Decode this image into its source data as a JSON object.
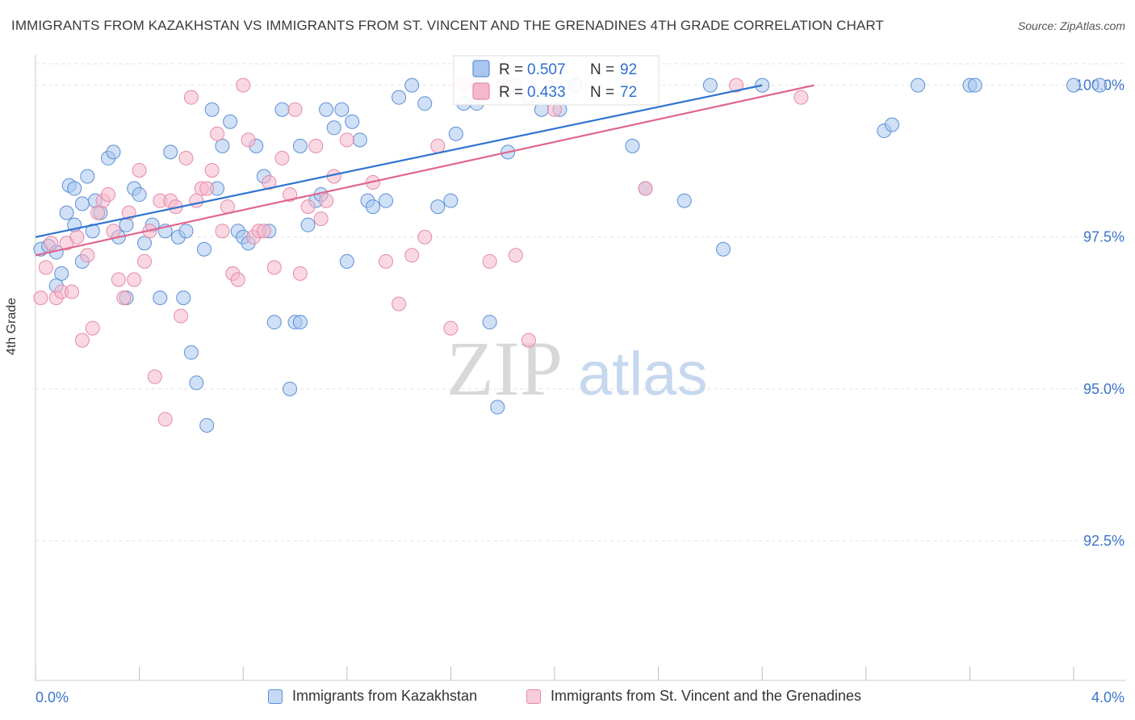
{
  "title": "IMMIGRANTS FROM KAZAKHSTAN VS IMMIGRANTS FROM ST. VINCENT AND THE GRENADINES 4TH GRADE CORRELATION CHART",
  "source": "Source: ZipAtlas.com",
  "watermark": {
    "zip": "ZIP",
    "atlas": "atlas"
  },
  "chart_data": {
    "type": "scatter",
    "ylabel": "4th Grade",
    "xlim": [
      0.0,
      4.0
    ],
    "ylim": [
      90.2,
      100.5
    ],
    "x_tick_labels": [
      "0.0%",
      "4.0%"
    ],
    "y_ticks": [
      100.0,
      97.5,
      95.0,
      92.5
    ],
    "y_tick_labels": [
      "100.0%",
      "97.5%",
      "95.0%",
      "92.5%"
    ],
    "grid": true,
    "legend_placement": "top-center",
    "colors": {
      "blue_fill": "#a9c6ee",
      "blue_stroke": "#5b8fd6",
      "blue_line": "#2f74d0",
      "pink_fill": "#f5b8cb",
      "pink_stroke": "#e48aa8",
      "pink_line": "#e0668f",
      "value_text": "#2f6fd0"
    },
    "legend_stats": [
      {
        "r_label": "R = ",
        "r_value": "0.507",
        "n_label": "N = ",
        "n_value": "92"
      },
      {
        "r_label": "R = ",
        "r_value": "0.433",
        "n_label": "N = ",
        "n_value": "72"
      }
    ],
    "series": [
      {
        "name": "Immigrants from Kazakhstan",
        "color": "#a9c6ee",
        "trend": {
          "x": [
            0.0,
            2.8
          ],
          "y": [
            97.5,
            100.0
          ]
        },
        "points": [
          [
            0.02,
            97.3
          ],
          [
            0.05,
            97.35
          ],
          [
            0.08,
            97.25
          ],
          [
            0.1,
            96.9
          ],
          [
            0.08,
            96.7
          ],
          [
            0.12,
            97.9
          ],
          [
            0.15,
            97.7
          ],
          [
            0.18,
            97.1
          ],
          [
            0.13,
            98.35
          ],
          [
            0.15,
            98.3
          ],
          [
            0.18,
            98.05
          ],
          [
            0.2,
            98.5
          ],
          [
            0.23,
            98.1
          ],
          [
            0.25,
            97.9
          ],
          [
            0.22,
            97.6
          ],
          [
            0.28,
            98.8
          ],
          [
            0.3,
            98.9
          ],
          [
            0.32,
            97.5
          ],
          [
            0.35,
            97.7
          ],
          [
            0.38,
            98.3
          ],
          [
            0.4,
            98.2
          ],
          [
            0.42,
            97.4
          ],
          [
            0.45,
            97.7
          ],
          [
            0.48,
            96.5
          ],
          [
            0.5,
            97.6
          ],
          [
            0.52,
            98.9
          ],
          [
            0.55,
            97.5
          ],
          [
            0.57,
            96.5
          ],
          [
            0.58,
            97.6
          ],
          [
            0.6,
            95.6
          ],
          [
            0.62,
            95.1
          ],
          [
            0.65,
            97.3
          ],
          [
            0.66,
            94.4
          ],
          [
            0.68,
            99.6
          ],
          [
            0.7,
            98.3
          ],
          [
            0.72,
            99.0
          ],
          [
            0.75,
            99.4
          ],
          [
            0.78,
            97.6
          ],
          [
            0.8,
            97.5
          ],
          [
            0.82,
            97.4
          ],
          [
            0.85,
            99.0
          ],
          [
            0.88,
            98.5
          ],
          [
            0.9,
            97.6
          ],
          [
            0.92,
            96.1
          ],
          [
            0.95,
            99.6
          ],
          [
            0.98,
            95.0
          ],
          [
            1.0,
            96.1
          ],
          [
            1.02,
            99.0
          ],
          [
            1.05,
            97.7
          ],
          [
            1.08,
            98.1
          ],
          [
            1.1,
            98.2
          ],
          [
            1.12,
            99.6
          ],
          [
            1.15,
            99.3
          ],
          [
            1.18,
            99.6
          ],
          [
            1.2,
            97.1
          ],
          [
            1.22,
            99.4
          ],
          [
            1.25,
            99.1
          ],
          [
            1.28,
            98.1
          ],
          [
            1.3,
            98.0
          ],
          [
            1.35,
            98.1
          ],
          [
            1.4,
            99.8
          ],
          [
            1.45,
            100.0
          ],
          [
            1.5,
            99.7
          ],
          [
            1.55,
            98.0
          ],
          [
            1.6,
            98.1
          ],
          [
            1.62,
            99.2
          ],
          [
            1.65,
            99.7
          ],
          [
            1.7,
            99.7
          ],
          [
            1.72,
            100.0
          ],
          [
            1.75,
            96.1
          ],
          [
            1.78,
            94.7
          ],
          [
            1.82,
            98.9
          ],
          [
            1.85,
            100.0
          ],
          [
            1.9,
            99.8
          ],
          [
            1.95,
            99.6
          ],
          [
            2.02,
            99.6
          ],
          [
            2.08,
            100.0
          ],
          [
            2.3,
            99.0
          ],
          [
            2.35,
            98.3
          ],
          [
            2.5,
            98.1
          ],
          [
            2.6,
            100.0
          ],
          [
            2.65,
            97.3
          ],
          [
            2.8,
            100.0
          ],
          [
            3.27,
            99.25
          ],
          [
            3.3,
            99.35
          ],
          [
            3.4,
            100.0
          ],
          [
            3.6,
            100.0
          ],
          [
            3.62,
            100.0
          ],
          [
            4.0,
            100.0
          ],
          [
            4.1,
            100.0
          ],
          [
            1.02,
            96.1
          ],
          [
            0.35,
            96.5
          ]
        ]
      },
      {
        "name": "Immigrants from St. Vincent and the Grenadines",
        "color": "#f5b8cb",
        "trend": {
          "x": [
            0.0,
            3.0
          ],
          "y": [
            97.2,
            100.0
          ]
        },
        "points": [
          [
            0.02,
            96.5
          ],
          [
            0.04,
            97.0
          ],
          [
            0.06,
            97.4
          ],
          [
            0.08,
            96.5
          ],
          [
            0.1,
            96.6
          ],
          [
            0.12,
            97.4
          ],
          [
            0.14,
            96.6
          ],
          [
            0.16,
            97.5
          ],
          [
            0.18,
            95.8
          ],
          [
            0.2,
            97.2
          ],
          [
            0.22,
            96.0
          ],
          [
            0.24,
            97.9
          ],
          [
            0.26,
            98.1
          ],
          [
            0.28,
            98.2
          ],
          [
            0.3,
            97.6
          ],
          [
            0.32,
            96.8
          ],
          [
            0.34,
            96.5
          ],
          [
            0.36,
            97.9
          ],
          [
            0.38,
            96.8
          ],
          [
            0.4,
            98.6
          ],
          [
            0.42,
            97.1
          ],
          [
            0.44,
            97.6
          ],
          [
            0.46,
            95.2
          ],
          [
            0.48,
            98.1
          ],
          [
            0.5,
            94.5
          ],
          [
            0.52,
            98.1
          ],
          [
            0.54,
            98.0
          ],
          [
            0.56,
            96.2
          ],
          [
            0.58,
            98.8
          ],
          [
            0.6,
            99.8
          ],
          [
            0.62,
            98.1
          ],
          [
            0.64,
            98.3
          ],
          [
            0.66,
            98.3
          ],
          [
            0.68,
            98.6
          ],
          [
            0.7,
            99.2
          ],
          [
            0.72,
            97.6
          ],
          [
            0.74,
            98.0
          ],
          [
            0.76,
            96.9
          ],
          [
            0.78,
            96.8
          ],
          [
            0.8,
            100.0
          ],
          [
            0.82,
            99.1
          ],
          [
            0.84,
            97.5
          ],
          [
            0.86,
            97.6
          ],
          [
            0.88,
            97.6
          ],
          [
            0.9,
            98.4
          ],
          [
            0.92,
            97.0
          ],
          [
            0.95,
            98.8
          ],
          [
            0.98,
            98.2
          ],
          [
            1.0,
            99.6
          ],
          [
            1.02,
            96.9
          ],
          [
            1.05,
            98.0
          ],
          [
            1.08,
            99.0
          ],
          [
            1.1,
            97.8
          ],
          [
            1.12,
            98.1
          ],
          [
            1.15,
            98.5
          ],
          [
            1.2,
            99.1
          ],
          [
            1.3,
            98.4
          ],
          [
            1.35,
            97.1
          ],
          [
            1.4,
            96.4
          ],
          [
            1.45,
            97.2
          ],
          [
            1.5,
            97.5
          ],
          [
            1.55,
            99.0
          ],
          [
            1.6,
            96.0
          ],
          [
            1.65,
            100.0
          ],
          [
            1.75,
            97.1
          ],
          [
            1.8,
            100.0
          ],
          [
            1.85,
            97.2
          ],
          [
            1.9,
            95.8
          ],
          [
            2.0,
            99.6
          ],
          [
            2.35,
            98.3
          ],
          [
            2.7,
            100.0
          ],
          [
            2.95,
            99.8
          ]
        ]
      }
    ]
  },
  "legend": [
    {
      "label": "Immigrants from Kazakhstan"
    },
    {
      "label": "Immigrants from St. Vincent and the Grenadines"
    }
  ]
}
